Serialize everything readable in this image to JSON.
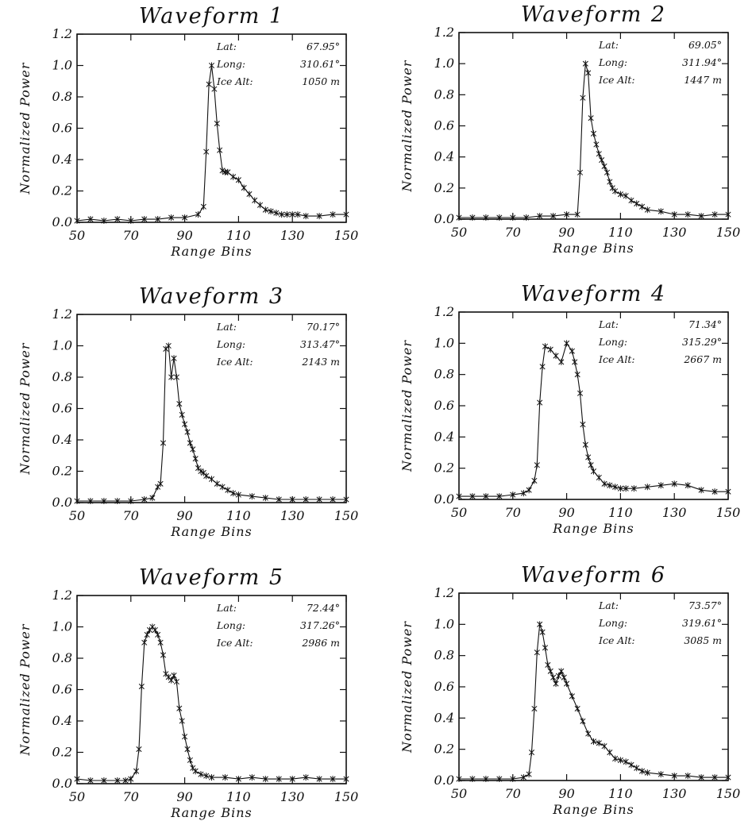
{
  "chart_data": [
    {
      "type": "line",
      "title": "Waveform 1",
      "xlabel": "Range Bins",
      "ylabel": "Normalized Power",
      "xlim": [
        50,
        150
      ],
      "ylim": [
        0,
        1.2
      ],
      "xticks": [
        "50",
        "70",
        "90",
        "110",
        "130",
        "150"
      ],
      "yticks": [
        "0.0",
        "0.2",
        "0.4",
        "0.6",
        "0.8",
        "1.0",
        "1.2"
      ],
      "annotations": [
        {
          "label": "Lat:",
          "value": "67.95°"
        },
        {
          "label": "Long:",
          "value": "310.61°"
        },
        {
          "label": "Ice Alt:",
          "value": "1050 m"
        }
      ],
      "series": [
        {
          "x": [
            50,
            55,
            60,
            65,
            70,
            75,
            80,
            85,
            90,
            95,
            97,
            98,
            99,
            100,
            101,
            102,
            103,
            104,
            105,
            106,
            108,
            110,
            112,
            114,
            116,
            118,
            120,
            122,
            124,
            126,
            128,
            130,
            132,
            135,
            140,
            145,
            150
          ],
          "y": [
            0.01,
            0.02,
            0.01,
            0.02,
            0.01,
            0.02,
            0.02,
            0.03,
            0.03,
            0.05,
            0.1,
            0.45,
            0.88,
            1.0,
            0.85,
            0.63,
            0.46,
            0.33,
            0.32,
            0.32,
            0.29,
            0.27,
            0.22,
            0.18,
            0.14,
            0.11,
            0.08,
            0.07,
            0.06,
            0.05,
            0.05,
            0.05,
            0.05,
            0.04,
            0.04,
            0.05,
            0.05
          ]
        }
      ]
    },
    {
      "type": "line",
      "title": "Waveform 2",
      "xlabel": "Range Bins",
      "ylabel": "Normalized Power",
      "xlim": [
        50,
        150
      ],
      "ylim": [
        0,
        1.2
      ],
      "xticks": [
        "50",
        "70",
        "90",
        "110",
        "130",
        "150"
      ],
      "yticks": [
        "0.0",
        "0.2",
        "0.4",
        "0.6",
        "0.8",
        "1.0",
        "1.2"
      ],
      "annotations": [
        {
          "label": "Lat:",
          "value": "69.05°"
        },
        {
          "label": "Long:",
          "value": "311.94°"
        },
        {
          "label": "Ice Alt:",
          "value": "1447 m"
        }
      ],
      "series": [
        {
          "x": [
            50,
            55,
            60,
            65,
            70,
            75,
            80,
            85,
            90,
            94,
            95,
            96,
            97,
            98,
            99,
            100,
            101,
            102,
            103,
            104,
            105,
            106,
            107,
            108,
            110,
            112,
            114,
            116,
            118,
            120,
            125,
            130,
            135,
            140,
            145,
            150
          ],
          "y": [
            0.01,
            0.01,
            0.01,
            0.01,
            0.01,
            0.01,
            0.02,
            0.02,
            0.03,
            0.03,
            0.3,
            0.78,
            1.0,
            0.94,
            0.65,
            0.55,
            0.48,
            0.42,
            0.38,
            0.34,
            0.3,
            0.24,
            0.2,
            0.18,
            0.16,
            0.15,
            0.12,
            0.1,
            0.08,
            0.06,
            0.05,
            0.03,
            0.03,
            0.02,
            0.03,
            0.03
          ]
        }
      ]
    },
    {
      "type": "line",
      "title": "Waveform 3",
      "xlabel": "Range Bins",
      "ylabel": "Normalized Power",
      "xlim": [
        50,
        150
      ],
      "ylim": [
        0,
        1.2
      ],
      "xticks": [
        "50",
        "70",
        "90",
        "110",
        "130",
        "150"
      ],
      "yticks": [
        "0.0",
        "0.2",
        "0.4",
        "0.6",
        "0.8",
        "1.0",
        "1.2"
      ],
      "annotations": [
        {
          "label": "Lat:",
          "value": "70.17°"
        },
        {
          "label": "Long:",
          "value": "313.47°"
        },
        {
          "label": "Ice Alt:",
          "value": "2143 m"
        }
      ],
      "series": [
        {
          "x": [
            50,
            55,
            60,
            65,
            70,
            75,
            78,
            80,
            81,
            82,
            83,
            84,
            85,
            86,
            87,
            88,
            89,
            90,
            91,
            92,
            93,
            94,
            95,
            96,
            97,
            98,
            100,
            102,
            104,
            106,
            108,
            110,
            115,
            120,
            125,
            130,
            135,
            140,
            145,
            150
          ],
          "y": [
            0.01,
            0.01,
            0.01,
            0.01,
            0.01,
            0.02,
            0.03,
            0.1,
            0.12,
            0.38,
            0.98,
            1.0,
            0.8,
            0.92,
            0.8,
            0.63,
            0.56,
            0.5,
            0.45,
            0.38,
            0.34,
            0.28,
            0.22,
            0.2,
            0.19,
            0.17,
            0.15,
            0.12,
            0.1,
            0.08,
            0.06,
            0.05,
            0.04,
            0.03,
            0.02,
            0.02,
            0.02,
            0.02,
            0.02,
            0.02
          ]
        }
      ]
    },
    {
      "type": "line",
      "title": "Waveform 4",
      "xlabel": "Range Bins",
      "ylabel": "Normalized Power",
      "xlim": [
        50,
        150
      ],
      "ylim": [
        0,
        1.2
      ],
      "xticks": [
        "50",
        "70",
        "90",
        "110",
        "130",
        "150"
      ],
      "yticks": [
        "0.0",
        "0.2",
        "0.4",
        "0.6",
        "0.8",
        "1.0",
        "1.2"
      ],
      "annotations": [
        {
          "label": "Lat:",
          "value": "71.34°"
        },
        {
          "label": "Long:",
          "value": "315.29°"
        },
        {
          "label": "Ice Alt:",
          "value": "2667 m"
        }
      ],
      "series": [
        {
          "x": [
            50,
            55,
            60,
            65,
            70,
            74,
            76,
            78,
            79,
            80,
            81,
            82,
            84,
            86,
            88,
            90,
            92,
            93,
            94,
            95,
            96,
            97,
            98,
            99,
            100,
            102,
            104,
            106,
            108,
            110,
            112,
            115,
            120,
            125,
            130,
            135,
            140,
            145,
            150
          ],
          "y": [
            0.02,
            0.02,
            0.02,
            0.02,
            0.03,
            0.04,
            0.06,
            0.12,
            0.22,
            0.62,
            0.85,
            0.98,
            0.96,
            0.92,
            0.88,
            1.0,
            0.95,
            0.88,
            0.8,
            0.68,
            0.48,
            0.35,
            0.27,
            0.22,
            0.18,
            0.14,
            0.1,
            0.09,
            0.08,
            0.07,
            0.07,
            0.07,
            0.08,
            0.09,
            0.1,
            0.09,
            0.06,
            0.05,
            0.05
          ]
        }
      ]
    },
    {
      "type": "line",
      "title": "Waveform 5",
      "xlabel": "Range Bins",
      "ylabel": "Normalized Power",
      "xlim": [
        50,
        150
      ],
      "ylim": [
        0,
        1.2
      ],
      "xticks": [
        "50",
        "70",
        "90",
        "110",
        "130",
        "150"
      ],
      "yticks": [
        "0.0",
        "0.2",
        "0.4",
        "0.6",
        "0.8",
        "1.0",
        "1.2"
      ],
      "annotations": [
        {
          "label": "Lat:",
          "value": "72.44°"
        },
        {
          "label": "Long:",
          "value": "317.26°"
        },
        {
          "label": "Ice Alt:",
          "value": "2986 m"
        }
      ],
      "series": [
        {
          "x": [
            50,
            55,
            60,
            65,
            68,
            70,
            72,
            73,
            74,
            75,
            76,
            77,
            78,
            79,
            80,
            81,
            82,
            83,
            84,
            85,
            86,
            87,
            88,
            89,
            90,
            91,
            92,
            93,
            94,
            96,
            98,
            100,
            105,
            110,
            115,
            120,
            125,
            130,
            135,
            140,
            145,
            150
          ],
          "y": [
            0.03,
            0.02,
            0.02,
            0.02,
            0.02,
            0.03,
            0.08,
            0.22,
            0.62,
            0.9,
            0.95,
            0.98,
            1.0,
            0.98,
            0.95,
            0.9,
            0.82,
            0.7,
            0.68,
            0.66,
            0.69,
            0.65,
            0.48,
            0.4,
            0.3,
            0.22,
            0.15,
            0.1,
            0.08,
            0.06,
            0.05,
            0.04,
            0.04,
            0.03,
            0.04,
            0.03,
            0.03,
            0.03,
            0.04,
            0.03,
            0.03,
            0.03
          ]
        }
      ]
    },
    {
      "type": "line",
      "title": "Waveform 6",
      "xlabel": "Range Bins",
      "ylabel": "Normalized Power",
      "xlim": [
        50,
        150
      ],
      "ylim": [
        0,
        1.2
      ],
      "xticks": [
        "50",
        "70",
        "90",
        "110",
        "130",
        "150"
      ],
      "yticks": [
        "0.0",
        "0.2",
        "0.4",
        "0.6",
        "0.8",
        "1.0",
        "1.2"
      ],
      "annotations": [
        {
          "label": "Lat:",
          "value": "73.57°"
        },
        {
          "label": "Long:",
          "value": "319.61°"
        },
        {
          "label": "Ice Alt:",
          "value": "3085 m"
        }
      ],
      "series": [
        {
          "x": [
            50,
            55,
            60,
            65,
            70,
            74,
            76,
            77,
            78,
            79,
            80,
            81,
            82,
            83,
            84,
            85,
            86,
            87,
            88,
            89,
            90,
            92,
            94,
            96,
            98,
            100,
            102,
            104,
            106,
            108,
            110,
            112,
            114,
            116,
            118,
            120,
            125,
            130,
            135,
            140,
            145,
            150
          ],
          "y": [
            0.01,
            0.01,
            0.01,
            0.01,
            0.01,
            0.02,
            0.04,
            0.18,
            0.46,
            0.82,
            1.0,
            0.95,
            0.85,
            0.74,
            0.7,
            0.66,
            0.62,
            0.67,
            0.7,
            0.66,
            0.62,
            0.54,
            0.46,
            0.38,
            0.3,
            0.25,
            0.24,
            0.22,
            0.18,
            0.14,
            0.13,
            0.12,
            0.1,
            0.08,
            0.06,
            0.05,
            0.04,
            0.03,
            0.03,
            0.02,
            0.02,
            0.02
          ]
        }
      ]
    }
  ]
}
